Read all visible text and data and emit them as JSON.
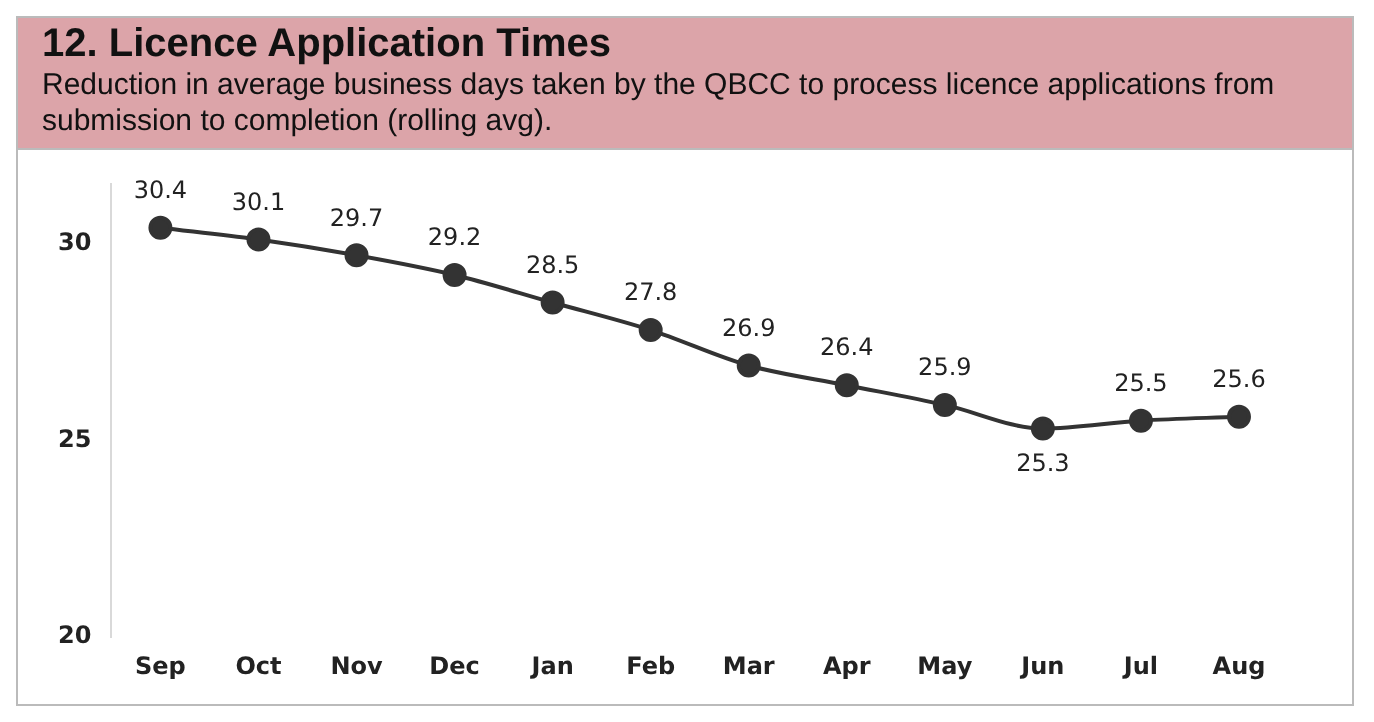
{
  "chart_data": {
    "type": "line",
    "title": "12. Licence Application Times",
    "subtitle": "Reduction in average business days taken by the QBCC to process licence applications from submission to completion (rolling avg).",
    "categories": [
      "Sep",
      "Oct",
      "Nov",
      "Dec",
      "Jan",
      "Feb",
      "Mar",
      "Apr",
      "May",
      "Jun",
      "Jul",
      "Aug"
    ],
    "series": [
      {
        "color": "#333333",
        "values": [
          30.4,
          30.1,
          29.7,
          29.2,
          28.5,
          27.8,
          26.9,
          26.4,
          25.9,
          25.3,
          25.5,
          25.6
        ]
      }
    ],
    "ylim": [
      20,
      31.5
    ],
    "yticks": [
      20,
      25,
      30
    ],
    "grid": false,
    "legend": false,
    "marker": "circle",
    "line_style": "solid",
    "data_labels": true
  }
}
